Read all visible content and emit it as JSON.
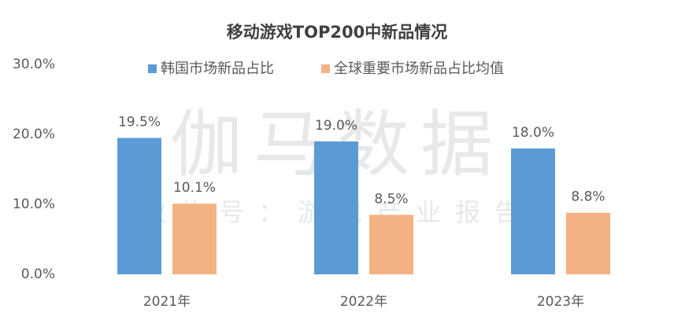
{
  "chart_data": {
    "type": "bar",
    "title": "移动游戏TOP200中新品情况",
    "watermark": "伽马数据",
    "watermark_subtitle": "微信号：游戏产业报告",
    "categories": [
      "2021年",
      "2022年",
      "2023年"
    ],
    "series": [
      {
        "name": "韩国市场新品占比",
        "color": "#5b9bd5",
        "values": [
          19.5,
          19.0,
          18.0
        ],
        "value_labels": [
          "19.5%",
          "19.0%",
          "18.0%"
        ]
      },
      {
        "name": "全球重要市场新品占比均值",
        "color": "#f4b183",
        "values": [
          10.1,
          8.5,
          8.8
        ],
        "value_labels": [
          "10.1%",
          "8.5%",
          "8.8%"
        ]
      }
    ],
    "ylim": [
      0,
      30
    ],
    "yticks": [
      {
        "value": 0,
        "label": "0.0%"
      },
      {
        "value": 10,
        "label": "10.0%"
      },
      {
        "value": 20,
        "label": "20.0%"
      },
      {
        "value": 30,
        "label": "30.0%"
      }
    ],
    "grid": false,
    "legend": "top"
  }
}
